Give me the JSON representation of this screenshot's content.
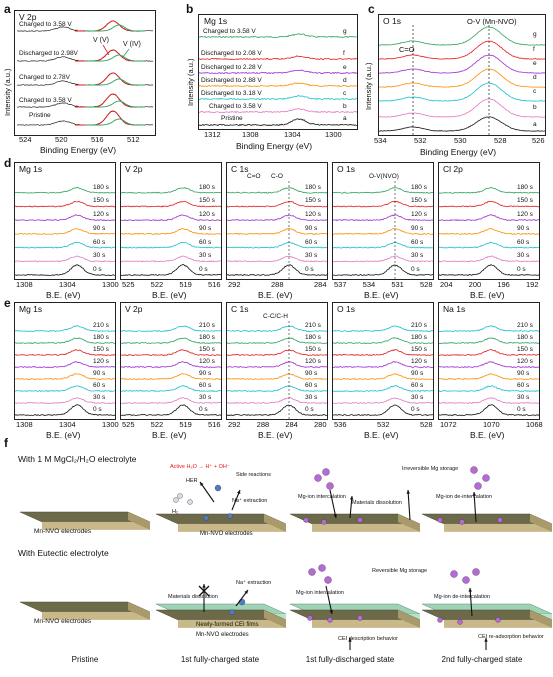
{
  "panels": {
    "a": {
      "letter": "a",
      "title": "V 2p",
      "xlabel": "Binding Energy (eV)",
      "ylabel": "Intensity (a.u.)",
      "ticks": [
        "524",
        "520",
        "516",
        "512"
      ],
      "labels": [
        "Charged to 3.58 V",
        "Discharged to 2.98V",
        "Charged to 2.78V",
        "Charged to 3.58 V",
        "Pristine"
      ],
      "vlabels": [
        "V (V)",
        "V (IV)"
      ]
    },
    "b": {
      "letter": "b",
      "title": "Mg 1s",
      "xlabel": "Binding Energy (eV)",
      "ylabel": "Intensity (a.u.)",
      "ticks": [
        "1312",
        "1308",
        "1304",
        "1300"
      ],
      "labels": [
        "Charged to 3.58 V",
        "Discharged to 2.08 V",
        "Discharged to 2.28 V",
        "Discharged to 2.88 V",
        "Discharged to 3.18 V",
        "Charged to 3.58 V",
        "Pristine"
      ],
      "letters": [
        "g",
        "f",
        "e",
        "d",
        "c",
        "b",
        "a"
      ]
    },
    "c": {
      "letter": "c",
      "title": "O 1s",
      "xlabel": "Binding Energy (eV)",
      "ylabel": "Intensity (a.u.)",
      "ticks": [
        "534",
        "532",
        "530",
        "528",
        "526"
      ],
      "annot1": "O-V (Mn-NVO)",
      "annot2": "C=O",
      "letters": [
        "g",
        "f",
        "e",
        "d",
        "c",
        "b",
        "a"
      ]
    },
    "d": {
      "letter": "d",
      "xlabel": "B.E. (eV)",
      "subs": [
        {
          "title": "Mg 1s",
          "ticks": [
            "1308",
            "1304",
            "1300"
          ]
        },
        {
          "title": "V 2p",
          "ticks": [
            "525",
            "522",
            "519",
            "516"
          ]
        },
        {
          "title": "C 1s",
          "ticks": [
            "292",
            "288",
            "284"
          ],
          "annots": [
            "C=O",
            "C-O"
          ]
        },
        {
          "title": "O 1s",
          "ticks": [
            "537",
            "534",
            "531",
            "528"
          ],
          "annots": [
            "O-V(NVO)"
          ]
        },
        {
          "title": "Cl 2p",
          "ticks": [
            "204",
            "200",
            "196",
            "192"
          ]
        }
      ],
      "times": [
        "180 s",
        "150 s",
        "120 s",
        "90 s",
        "60 s",
        "30 s",
        "0 s"
      ]
    },
    "e": {
      "letter": "e",
      "xlabel": "B.E. (eV)",
      "subs": [
        {
          "title": "Mg 1s",
          "ticks": [
            "1308",
            "1304",
            "1300"
          ]
        },
        {
          "title": "V 2p",
          "ticks": [
            "525",
            "522",
            "519",
            "516"
          ]
        },
        {
          "title": "C 1s",
          "ticks": [
            "292",
            "288",
            "284",
            "280"
          ],
          "annots": [
            "C-C/C-H"
          ]
        },
        {
          "title": "O 1s",
          "ticks": [
            "536",
            "532",
            "528"
          ]
        },
        {
          "title": "Na 1s",
          "ticks": [
            "1072",
            "1070",
            "1068"
          ]
        }
      ],
      "times": [
        "210 s",
        "180 s",
        "150 s",
        "120 s",
        "90 s",
        "60 s",
        "30 s",
        "0 s"
      ]
    },
    "f": {
      "letter": "f",
      "row1_title": "With 1 M MgCl₂/H₂O electrolyte",
      "row2_title": "With Eutectic electrolyte",
      "slab_label": "Mn-NVO electrodes",
      "cei_label": "Newly-formed CEI films",
      "row1_notes": {
        "active": "Active H₂O → H⁺ + OH⁻",
        "her": "HER",
        "h2": "H₂",
        "side": "Side reactions",
        "na": "Na⁺ extraction",
        "mg_int": "Mg-ion intercalation",
        "dissolution": "Materials dissolution",
        "irrev": "Irreversible Mg storage",
        "mg_deint": "Mg-ion de-intercalation"
      },
      "row2_notes": {
        "dissolution": "Materials dissolution",
        "na": "Na⁺ extraction",
        "rev": "Reversible Mg storage",
        "mg_int": "Mg-ion intercalation",
        "mg_deint": "Mg-ion de-intercalation",
        "cei_desc": "CEI description behavior",
        "cei_re": "CEI re-adsorption behavior"
      },
      "states": [
        "Pristine",
        "1st fully-charged state",
        "1st fully-discharged state",
        "2nd fully-charged state"
      ]
    }
  },
  "colors": {
    "g": "#2ca25f",
    "f": "#e31a1c",
    "e": "#9e2bd1",
    "d": "#ff8c00",
    "c": "#17becf",
    "b": "#e377c2",
    "a": "#111111",
    "slab_top": "#6d6a4a",
    "slab_side": "#c9b98a",
    "cei": "#9ed3b6",
    "mg": "#b56bd6",
    "na": "#4a7fc0"
  }
}
